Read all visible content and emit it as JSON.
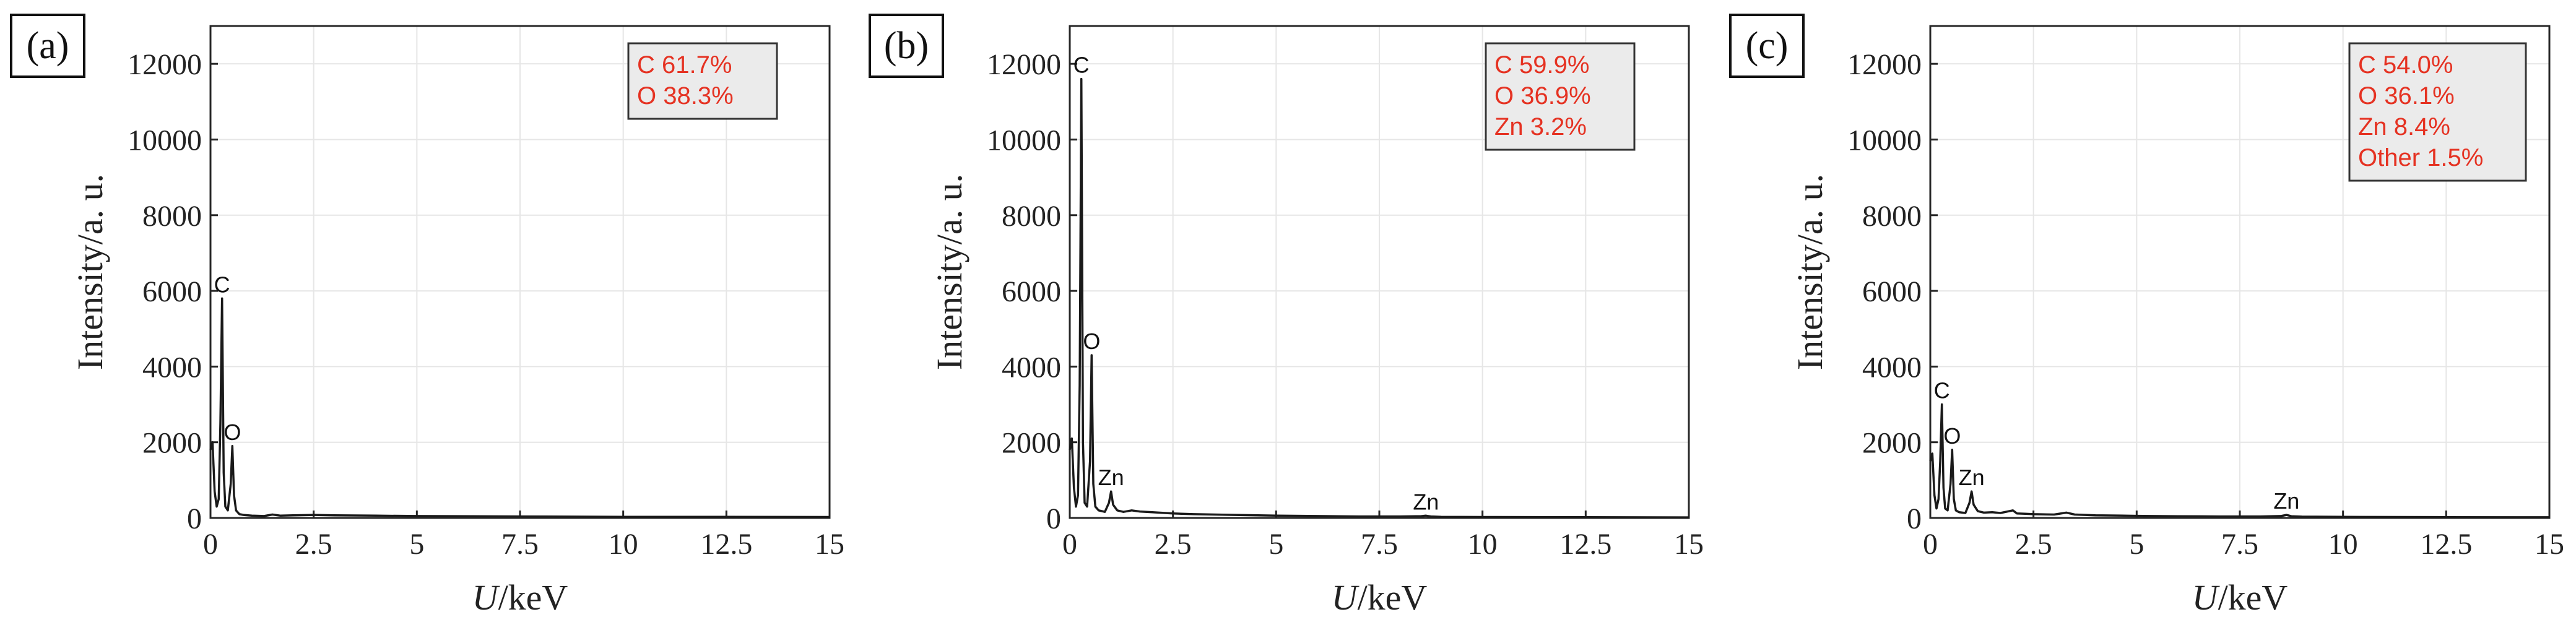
{
  "chart_data": [
    {
      "type": "line",
      "panel_label": "(a)",
      "xlabel_italic": "U",
      "xlabel_rest": "/keV",
      "ylabel": "Intensity/a. u.",
      "xlim": [
        0,
        15
      ],
      "ylim": [
        0,
        13000
      ],
      "xticks": [
        "0",
        "2.5",
        "5",
        "7.5",
        "10",
        "12.5",
        "15"
      ],
      "yticks": [
        "0",
        "2000",
        "4000",
        "6000",
        "8000",
        "10000",
        "12000"
      ],
      "grid": true,
      "composition": [
        "C 61.7%",
        "O 38.3%"
      ],
      "composition_box_color": "#ebebeb",
      "composition_text_color": "#e53222",
      "peaks": [
        {
          "label": "C",
          "x": 0.28,
          "y": 5800
        },
        {
          "label": "O",
          "x": 0.53,
          "y": 1900
        }
      ],
      "series": [
        {
          "x": [
            0,
            0.05,
            0.1,
            0.15,
            0.2,
            0.24,
            0.28,
            0.32,
            0.36,
            0.42,
            0.49,
            0.53,
            0.57,
            0.62,
            0.7,
            0.8,
            1.0,
            1.3,
            1.5,
            1.7,
            2.0,
            2.5,
            3.0,
            4.0,
            5.0,
            7.5,
            10,
            12.5,
            15
          ],
          "y": [
            1800,
            2000,
            700,
            300,
            500,
            2500,
            5800,
            1200,
            300,
            200,
            900,
            1900,
            600,
            200,
            100,
            80,
            60,
            50,
            90,
            60,
            70,
            80,
            70,
            60,
            50,
            40,
            30,
            30,
            25
          ]
        }
      ]
    },
    {
      "type": "line",
      "panel_label": "(b)",
      "xlabel_italic": "U",
      "xlabel_rest": "/keV",
      "ylabel": "Intensity/a. u.",
      "xlim": [
        0,
        15
      ],
      "ylim": [
        0,
        13000
      ],
      "xticks": [
        "0",
        "2.5",
        "5",
        "7.5",
        "10",
        "12.5",
        "15"
      ],
      "yticks": [
        "0",
        "2000",
        "4000",
        "6000",
        "8000",
        "10000",
        "12000"
      ],
      "grid": true,
      "composition": [
        "C 59.9%",
        "O 36.9%",
        "Zn 3.2%"
      ],
      "composition_box_color": "#ebebeb",
      "composition_text_color": "#e53222",
      "peaks": [
        {
          "label": "C",
          "x": 0.28,
          "y": 11600
        },
        {
          "label": "O",
          "x": 0.53,
          "y": 4300
        },
        {
          "label": "Zn",
          "x": 1.0,
          "y": 700
        },
        {
          "label": "Zn",
          "x": 8.63,
          "y": 60
        }
      ],
      "series": [
        {
          "x": [
            0,
            0.05,
            0.1,
            0.15,
            0.2,
            0.24,
            0.28,
            0.32,
            0.36,
            0.42,
            0.49,
            0.53,
            0.57,
            0.62,
            0.7,
            0.85,
            0.95,
            1.0,
            1.05,
            1.15,
            1.3,
            1.5,
            1.7,
            2.0,
            2.5,
            3.0,
            4.0,
            5.0,
            6.0,
            7.0,
            8.0,
            8.5,
            8.63,
            8.75,
            9.0,
            10,
            12.5,
            15
          ],
          "y": [
            1800,
            2100,
            800,
            300,
            600,
            3500,
            11600,
            2000,
            400,
            300,
            1500,
            4300,
            900,
            300,
            200,
            160,
            400,
            700,
            350,
            200,
            160,
            200,
            170,
            150,
            120,
            100,
            80,
            60,
            50,
            40,
            40,
            45,
            60,
            40,
            30,
            25,
            20,
            15
          ]
        }
      ]
    },
    {
      "type": "line",
      "panel_label": "(c)",
      "xlabel_italic": "U",
      "xlabel_rest": "/keV",
      "ylabel": "Intensity/a. u.",
      "xlim": [
        0,
        15
      ],
      "ylim": [
        0,
        13000
      ],
      "xticks": [
        "0",
        "2.5",
        "5",
        "7.5",
        "10",
        "12.5",
        "15"
      ],
      "yticks": [
        "0",
        "2000",
        "4000",
        "6000",
        "8000",
        "10000",
        "12000"
      ],
      "grid": true,
      "composition": [
        "C 54.0%",
        "O 36.1%",
        "Zn 8.4%",
        "Other 1.5%"
      ],
      "composition_box_color": "#ebebeb",
      "composition_text_color": "#e53222",
      "peaks": [
        {
          "label": "C",
          "x": 0.28,
          "y": 3000
        },
        {
          "label": "O",
          "x": 0.53,
          "y": 1800
        },
        {
          "label": "Zn",
          "x": 1.0,
          "y": 700
        },
        {
          "label": "Zn",
          "x": 8.63,
          "y": 80
        }
      ],
      "series": [
        {
          "x": [
            0,
            0.05,
            0.1,
            0.15,
            0.2,
            0.24,
            0.28,
            0.32,
            0.36,
            0.42,
            0.49,
            0.53,
            0.57,
            0.62,
            0.7,
            0.85,
            0.95,
            1.0,
            1.05,
            1.15,
            1.3,
            1.5,
            1.7,
            2.0,
            2.1,
            2.3,
            2.5,
            3.0,
            3.3,
            3.5,
            4.0,
            5.0,
            6.0,
            7.0,
            8.0,
            8.5,
            8.63,
            8.75,
            9.0,
            10,
            12.5,
            15
          ],
          "y": [
            1500,
            1700,
            600,
            250,
            500,
            1500,
            3000,
            800,
            250,
            200,
            900,
            1800,
            500,
            200,
            150,
            130,
            400,
            700,
            350,
            180,
            140,
            150,
            130,
            200,
            120,
            110,
            100,
            90,
            140,
            90,
            70,
            55,
            45,
            40,
            40,
            50,
            80,
            45,
            35,
            28,
            22,
            18
          ]
        }
      ]
    }
  ]
}
